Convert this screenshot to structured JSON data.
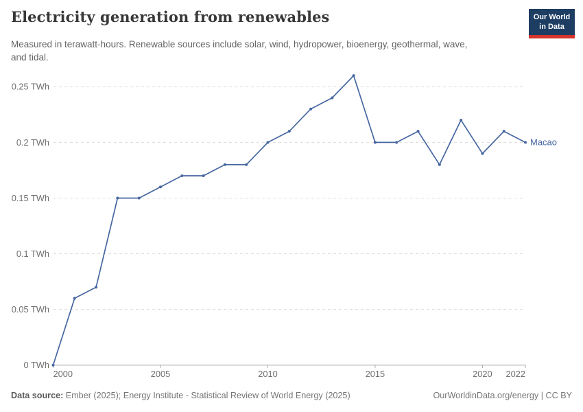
{
  "header": {
    "title": "Electricity generation from renewables",
    "subtitle": "Measured in terawatt-hours. Renewable sources include solar, wind, hydropower, bioenergy, geothermal, wave, and tidal."
  },
  "logo": {
    "line1": "Our World",
    "line2": "in Data",
    "bg_color": "#1d3d63",
    "bar_color": "#d4352c"
  },
  "chart_data": {
    "type": "line",
    "title": "Electricity generation from renewables",
    "xlabel": "",
    "ylabel": "TWh",
    "x": [
      2000,
      2001,
      2002,
      2003,
      2004,
      2005,
      2006,
      2007,
      2008,
      2009,
      2010,
      2011,
      2012,
      2013,
      2014,
      2015,
      2016,
      2017,
      2018,
      2019,
      2020,
      2021,
      2022
    ],
    "series": [
      {
        "name": "Macao",
        "color": "#4666a0",
        "values": [
          0,
          0.06,
          0.07,
          0.15,
          0.15,
          0.16,
          0.17,
          0.17,
          0.18,
          0.18,
          0.2,
          0.21,
          0.23,
          0.24,
          0.26,
          0.2,
          0.2,
          0.21,
          0.18,
          0.22,
          0.19,
          0.21,
          0.2
        ]
      }
    ],
    "xlim": [
      2000,
      2022
    ],
    "ylim": [
      0,
      0.26
    ],
    "x_ticks": [
      2000,
      2005,
      2010,
      2015,
      2020,
      2022
    ],
    "y_ticks": [
      {
        "value": 0,
        "label": "0 TWh"
      },
      {
        "value": 0.05,
        "label": "0.05 TWh"
      },
      {
        "value": 0.1,
        "label": "0.1 TWh"
      },
      {
        "value": 0.15,
        "label": "0.15 TWh"
      },
      {
        "value": 0.2,
        "label": "0.2 TWh"
      },
      {
        "value": 0.25,
        "label": "0.25 TWh"
      }
    ],
    "grid": "horizontal-dashed",
    "legend_position": "end-of-line"
  },
  "footer": {
    "source_label": "Data source:",
    "source_text": " Ember (2025); Energy Institute - Statistical Review of World Energy (2025)",
    "credit": "OurWorldinData.org/energy | CC BY"
  }
}
